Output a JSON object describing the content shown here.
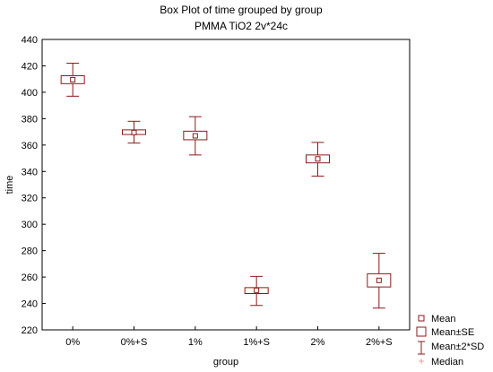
{
  "chart_data": {
    "type": "box",
    "title": "Box Plot of time grouped by  group",
    "subtitle": "PMMA TiO2 2v*24c",
    "xlabel": "group",
    "ylabel": "time",
    "ylim": [
      220,
      440
    ],
    "yticks": [
      220,
      240,
      260,
      280,
      300,
      320,
      340,
      360,
      380,
      400,
      420,
      440
    ],
    "categories": [
      "0%",
      "0%+S",
      "1%",
      "1%+S",
      "2%",
      "2%+S"
    ],
    "series": [
      {
        "category": "0%",
        "mean": 409.5,
        "se_low": 406.5,
        "se_high": 412.5,
        "sd2_low": 397.0,
        "sd2_high": 422.0
      },
      {
        "category": "0%+S",
        "mean": 369.5,
        "se_low": 368.0,
        "se_high": 371.5,
        "sd2_low": 361.5,
        "sd2_high": 378.0
      },
      {
        "category": "1%",
        "mean": 367.0,
        "se_low": 364.0,
        "se_high": 370.5,
        "sd2_low": 352.5,
        "sd2_high": 381.5
      },
      {
        "category": "1%+S",
        "mean": 250.0,
        "se_low": 247.5,
        "se_high": 252.0,
        "sd2_low": 238.5,
        "sd2_high": 260.5
      },
      {
        "category": "2%",
        "mean": 349.5,
        "se_low": 346.5,
        "se_high": 352.5,
        "sd2_low": 336.5,
        "sd2_high": 362.0
      },
      {
        "category": "2%+S",
        "mean": 257.5,
        "se_low": 252.5,
        "se_high": 262.5,
        "sd2_low": 236.5,
        "sd2_high": 278.0
      }
    ],
    "legend": {
      "placement": "bottom-right",
      "entries": [
        "Mean",
        "Mean±SE",
        "Mean±2*SD",
        "Median"
      ]
    },
    "colors": {
      "series": "#8b1a1a",
      "median": "#e8a0a0",
      "axis": "#000000"
    },
    "grid": false
  }
}
